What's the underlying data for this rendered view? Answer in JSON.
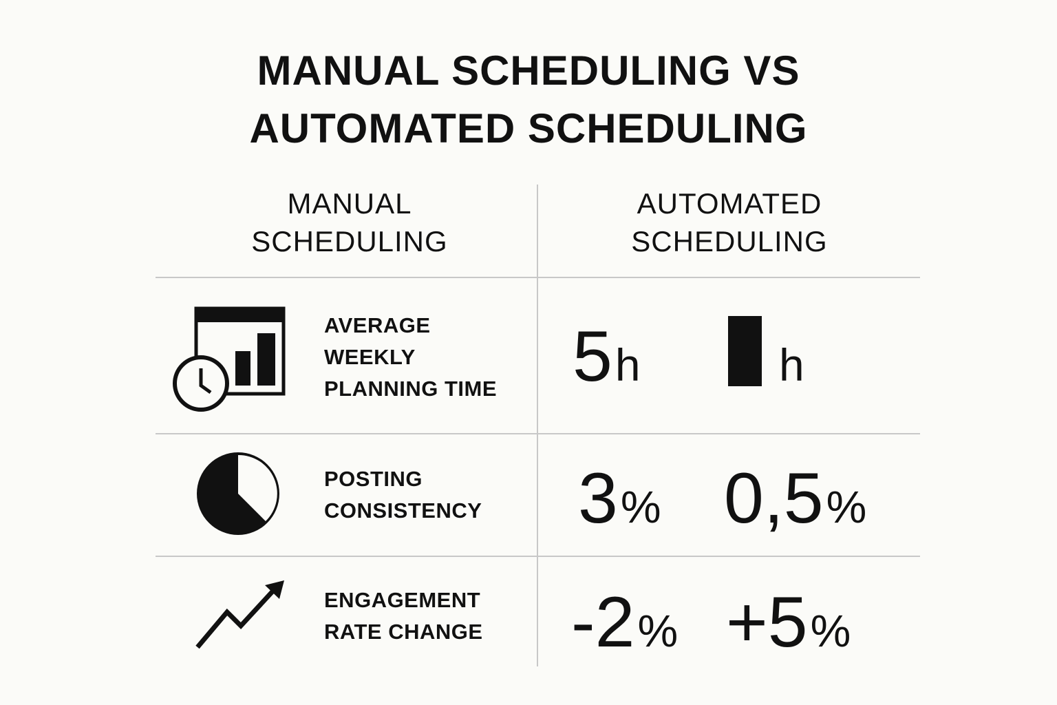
{
  "header": {
    "title_lines": [
      "MANUAL SCHEDULING VS",
      "AUTOMATED SCHEDULING"
    ]
  },
  "table": {
    "columns": [
      {
        "lines": [
          "MANUAL",
          "SCHEDULING"
        ]
      },
      {
        "lines": [
          "AUTOMATED",
          "SCHEDULING"
        ]
      }
    ],
    "rows": [
      {
        "label_lines": [
          "AVERAGE",
          "WEEKLY",
          "PLANNING TIME"
        ],
        "manual": {
          "number": "5",
          "unit": "h"
        },
        "automated": {
          "unit": "h"
        }
      },
      {
        "label_lines": [
          "POSTING",
          "CONSISTENCY"
        ],
        "manual": {
          "number": "3",
          "unit": "%"
        },
        "automated": {
          "number": "0,5",
          "unit": "%"
        }
      },
      {
        "label_lines": [
          "ENGAGEMENT",
          "RATE CHANGE"
        ],
        "manual": {
          "number": "-2",
          "unit": "%"
        },
        "automated": {
          "number": "+5",
          "unit": "%"
        }
      }
    ]
  }
}
